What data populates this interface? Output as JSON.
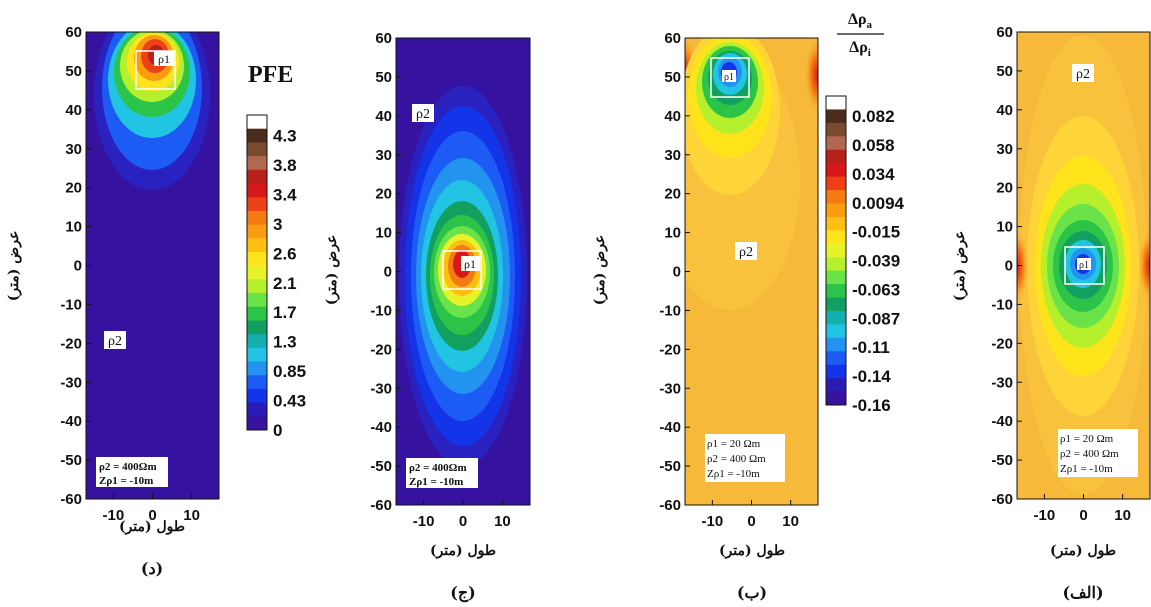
{
  "chart_data": [
    {
      "type": "heatmap",
      "caption": "(د)",
      "quantity": "PFE",
      "xlabel": "طول (متر)",
      "ylabel": "عرض (متر)",
      "xlim": [
        -17,
        17
      ],
      "ylim": [
        -60,
        60
      ],
      "xticks": [
        -10,
        0,
        10
      ],
      "yticks": [
        60,
        50,
        40,
        30,
        20,
        10,
        0,
        -10,
        -20,
        -30,
        -40,
        -50,
        -60
      ],
      "anomaly": {
        "label": "ρ1",
        "x": [
          -5,
          5
        ],
        "y": [
          45,
          55
        ],
        "peak": 4.5
      },
      "background_label": {
        "text": "ρ2",
        "x": -6,
        "y": -20
      },
      "info": [
        "ρ2 = 400Ωm",
        "Zρ1 = -10m"
      ],
      "background_value": 0
    },
    {
      "type": "heatmap",
      "caption": "(ج)",
      "quantity": "PFE",
      "xlabel": "طول (متر)",
      "ylabel": "عرض (متر)",
      "xlim": [
        -17,
        17
      ],
      "ylim": [
        -60,
        60
      ],
      "xticks": [
        -10,
        0,
        10
      ],
      "yticks": [
        60,
        50,
        40,
        30,
        20,
        10,
        0,
        -10,
        -20,
        -30,
        -40,
        -50,
        -60
      ],
      "anomaly": {
        "label": "ρ1",
        "x": [
          -5,
          5
        ],
        "y": [
          -5,
          5
        ],
        "peak": 3.6
      },
      "background_label": {
        "text": "ρ2",
        "x": -12,
        "y": 40
      },
      "info": [
        "ρ2 = 400Ωm",
        "Zρ1 = -10m"
      ],
      "background_value": 0
    },
    {
      "type": "heatmap",
      "caption": "(ب)",
      "quantity": "Δρa/Δρi",
      "xlabel": "طول (متر)",
      "ylabel": "عرض (متر)",
      "xlim": [
        -17,
        17
      ],
      "ylim": [
        -60,
        60
      ],
      "xticks": [
        -10,
        0,
        10
      ],
      "yticks": [
        60,
        50,
        40,
        30,
        20,
        10,
        0,
        -10,
        -20,
        -30,
        -40,
        -50,
        -60
      ],
      "anomaly": {
        "label": "ρ1",
        "x": [
          -5,
          5
        ],
        "y": [
          45,
          55
        ],
        "peak": -0.16
      },
      "background_label": {
        "text": "ρ2",
        "x": 4,
        "y": 5
      },
      "info": [
        "ρ1 = 20 Ωm",
        "ρ2 = 400 Ωm",
        "Zρ1 = -10m"
      ],
      "background_value": 0.0
    },
    {
      "type": "heatmap",
      "caption": "(الف)",
      "quantity": "Δρa/Δρi",
      "xlabel": "طول (متر)",
      "ylabel": "عرض (متر)",
      "xlim": [
        -17,
        17
      ],
      "ylim": [
        -60,
        60
      ],
      "xticks": [
        -10,
        0,
        10
      ],
      "yticks": [
        60,
        50,
        40,
        30,
        20,
        10,
        0,
        -10,
        -20,
        -30,
        -40,
        -50,
        -60
      ],
      "anomaly": {
        "label": "ρ1",
        "x": [
          -5,
          5
        ],
        "y": [
          -5,
          5
        ],
        "peak": -0.16
      },
      "background_label": {
        "text": "ρ2",
        "x": 0,
        "y": 50
      },
      "info": [
        "ρ1 = 20 Ωm",
        "ρ2 = 400 Ωm",
        "Zρ1 = -10m"
      ],
      "background_value": 0.0
    }
  ],
  "colorbars": [
    {
      "title": "PFE",
      "levels": [
        "4.3",
        "3.8",
        "3.4",
        "3",
        "2.6",
        "2.1",
        "1.7",
        "1.3",
        "0.85",
        "0.43",
        "0"
      ],
      "colors": [
        "#ffffff",
        "#4a2c1c",
        "#7a4a30",
        "#b06850",
        "#b8201a",
        "#d81818",
        "#ee4016",
        "#f47a12",
        "#fa9c10",
        "#ffbf12",
        "#ffe41c",
        "#e8f228",
        "#b6f02c",
        "#6ae24a",
        "#2cc448",
        "#12a060",
        "#14b0b0",
        "#22c4e4",
        "#2294f0",
        "#1c5cf4",
        "#1434ea",
        "#2a1cb4",
        "#3612a0"
      ]
    },
    {
      "title": "Δρa/Δρi",
      "levels": [
        "0.082",
        "0.058",
        "0.034",
        "0.0094",
        "-0.015",
        "-0.039",
        "-0.063",
        "-0.087",
        "-0.11",
        "-0.14",
        "-0.16"
      ],
      "colors": [
        "#ffffff",
        "#4a2c1c",
        "#7a4a30",
        "#b06850",
        "#b8201a",
        "#d81818",
        "#ee4016",
        "#f47a12",
        "#fa9c10",
        "#ffbf12",
        "#ffe41c",
        "#e8f228",
        "#b6f02c",
        "#6ae24a",
        "#2cc448",
        "#12a060",
        "#14b0b0",
        "#22c4e4",
        "#2294f0",
        "#1c5cf4",
        "#1434ea",
        "#2a1cb4",
        "#3612a0"
      ]
    }
  ]
}
